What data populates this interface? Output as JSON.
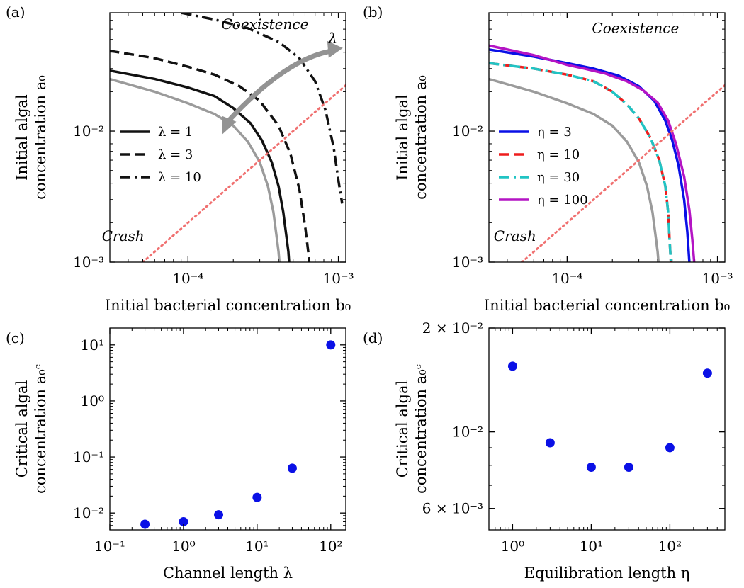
{
  "chart_data": [
    {
      "id": "a",
      "panel_label": "(a)",
      "type": "line",
      "xscale": "log",
      "yscale": "log",
      "xlim": [
        3.02e-05,
        0.00112
      ],
      "ylim": [
        0.001,
        0.08
      ],
      "xlabel": "Initial bacterial concentration b₀",
      "ylabel_line1": "Initial algal",
      "ylabel_line2": "concentration a₀",
      "xticks": [
        {
          "value": 0.0001,
          "label": "10⁻⁴"
        },
        {
          "value": 0.001,
          "label": "10⁻³"
        }
      ],
      "yticks": [
        {
          "value": 0.001,
          "label": "10⁻³"
        },
        {
          "value": 0.01,
          "label": "10⁻²"
        }
      ],
      "annotations": [
        {
          "text": "Coexistence",
          "x": 0.000325,
          "y": 0.06
        },
        {
          "text": "λ",
          "x": 0.00092,
          "y": 0.047
        },
        {
          "text": "Crash",
          "x": 3.7e-05,
          "y": 0.00145
        }
      ],
      "arrow": {
        "x": [
          0.00018,
          0.00035,
          0.0006,
          0.00092
        ],
        "y": [
          0.0115,
          0.0265,
          0.038,
          0.041
        ],
        "color": "#939393"
      },
      "legend": {
        "placement": "center-left"
      },
      "series": [
        {
          "name": "λ = 1",
          "color": "#111111",
          "dash": "solid",
          "x": [
            3e-05,
            6e-05,
            0.0001,
            0.00015,
            0.0002,
            0.00026,
            0.00031,
            0.00036,
            0.0004,
            0.00043,
            0.00045,
            0.000465,
            0.00047
          ],
          "y": [
            0.029,
            0.025,
            0.0215,
            0.0185,
            0.015,
            0.0115,
            0.0085,
            0.0058,
            0.0038,
            0.0024,
            0.0016,
            0.0012,
            0.001
          ]
        },
        {
          "name": "λ = 3",
          "color": "#111111",
          "dash": "dashed",
          "x": [
            3e-05,
            6e-05,
            0.0001,
            0.00015,
            0.00022,
            0.0003,
            0.0004,
            0.00048,
            0.00055,
            0.0006,
            0.00063,
            0.00064
          ],
          "y": [
            0.041,
            0.036,
            0.031,
            0.027,
            0.022,
            0.017,
            0.011,
            0.0067,
            0.0036,
            0.0019,
            0.0012,
            0.001
          ]
        },
        {
          "name": "λ = 10",
          "color": "#111111",
          "dash": "dashdot",
          "x": [
            9e-05,
            0.00015,
            0.00025,
            0.0004,
            0.00055,
            0.0007,
            0.00082,
            0.00093,
            0.001,
            0.00106
          ],
          "y": [
            0.08,
            0.071,
            0.061,
            0.048,
            0.036,
            0.024,
            0.0145,
            0.0075,
            0.0042,
            0.0028
          ]
        },
        {
          "name": "",
          "color": "#9b9b9b",
          "dash": "solid",
          "x": [
            3e-05,
            6e-05,
            0.0001,
            0.00015,
            0.0002,
            0.00025,
            0.0003,
            0.00034,
            0.00037,
            0.00039,
            0.0004,
            0.000405
          ],
          "y": [
            0.025,
            0.02,
            0.0163,
            0.0135,
            0.011,
            0.0083,
            0.0058,
            0.0038,
            0.0024,
            0.0015,
            0.0012,
            0.001
          ]
        },
        {
          "name": "",
          "color": "#f07070",
          "dash": "dotted",
          "x": [
            5e-05,
            0.00112
          ],
          "y": [
            0.001,
            0.0224
          ]
        }
      ]
    },
    {
      "id": "b",
      "panel_label": "(b)",
      "type": "line",
      "xscale": "log",
      "yscale": "log",
      "xlim": [
        3.02e-05,
        0.00112
      ],
      "ylim": [
        0.001,
        0.08
      ],
      "xlabel": "Initial bacterial concentration b₀",
      "ylabel_line1": "Initial algal",
      "ylabel_line2": "concentration a₀",
      "xticks": [
        {
          "value": 0.0001,
          "label": "10⁻⁴"
        },
        {
          "value": 0.001,
          "label": "10⁻³"
        }
      ],
      "yticks": [
        {
          "value": 0.001,
          "label": "10⁻³"
        },
        {
          "value": 0.01,
          "label": "10⁻²"
        }
      ],
      "annotations": [
        {
          "text": "Coexistence",
          "x": 0.000285,
          "y": 0.056
        },
        {
          "text": "Crash",
          "x": 4.5e-05,
          "y": 0.00145
        }
      ],
      "legend": {
        "placement": "center-left"
      },
      "series": [
        {
          "name": "η = 3",
          "color": "#0a10e6",
          "dash": "solid",
          "x": [
            3e-05,
            6e-05,
            0.0001,
            0.00015,
            0.00022,
            0.0003,
            0.00038,
            0.00045,
            0.0005,
            0.00055,
            0.0006,
            0.00063,
            0.00065
          ],
          "y": [
            0.042,
            0.037,
            0.033,
            0.03,
            0.0265,
            0.022,
            0.017,
            0.012,
            0.0085,
            0.0055,
            0.003,
            0.0017,
            0.001
          ]
        },
        {
          "name": "η = 10",
          "color": "#ee1d1d",
          "dash": "dashed",
          "x": [
            3e-05,
            6e-05,
            0.0001,
            0.00015,
            0.0002,
            0.00025,
            0.0003,
            0.00036,
            0.00041,
            0.00045,
            0.00047,
            0.00048,
            0.00049
          ],
          "y": [
            0.033,
            0.03,
            0.027,
            0.024,
            0.02,
            0.016,
            0.0125,
            0.0088,
            0.006,
            0.0038,
            0.0024,
            0.0015,
            0.001
          ]
        },
        {
          "name": "η = 30",
          "color": "#20c4c4",
          "dash": "dashdot",
          "x": [
            3e-05,
            6e-05,
            0.0001,
            0.00015,
            0.0002,
            0.00025,
            0.0003,
            0.00036,
            0.00041,
            0.00045,
            0.00047,
            0.00048,
            0.00049
          ],
          "y": [
            0.033,
            0.03,
            0.027,
            0.024,
            0.02,
            0.016,
            0.0125,
            0.0088,
            0.006,
            0.0038,
            0.0024,
            0.0015,
            0.001
          ]
        },
        {
          "name": "η = 100",
          "color": "#b414c4",
          "dash": "solid",
          "x": [
            3e-05,
            6e-05,
            0.0001,
            0.00013,
            0.00018,
            0.00025,
            0.00032,
            0.0004,
            0.00047,
            0.00053,
            0.0006,
            0.00065,
            0.00068,
            0.0007
          ],
          "y": [
            0.045,
            0.038,
            0.032,
            0.03,
            0.0275,
            0.024,
            0.0205,
            0.0165,
            0.012,
            0.008,
            0.0045,
            0.0025,
            0.0015,
            0.001
          ]
        },
        {
          "name": "",
          "color": "#9b9b9b",
          "dash": "solid",
          "x": [
            3e-05,
            6e-05,
            0.0001,
            0.00015,
            0.0002,
            0.00025,
            0.0003,
            0.00034,
            0.00037,
            0.00039,
            0.0004,
            0.000405
          ],
          "y": [
            0.025,
            0.02,
            0.0163,
            0.0135,
            0.011,
            0.0083,
            0.0058,
            0.0038,
            0.0024,
            0.0015,
            0.0012,
            0.001
          ]
        },
        {
          "name": "",
          "color": "#f07070",
          "dash": "dotted",
          "x": [
            5e-05,
            0.00112
          ],
          "y": [
            0.001,
            0.0224
          ]
        }
      ]
    },
    {
      "id": "c",
      "panel_label": "(c)",
      "type": "scatter",
      "xscale": "log",
      "yscale": "log",
      "xlim": [
        0.1,
        160
      ],
      "ylim": [
        0.005,
        20
      ],
      "xlabel": "Channel length λ",
      "ylabel_line1": "Critical algal",
      "ylabel_line2": "concentration a₀ᶜ",
      "xticks": [
        {
          "value": 0.1,
          "label": "10⁻¹"
        },
        {
          "value": 1,
          "label": "10⁰"
        },
        {
          "value": 10,
          "label": "10¹"
        },
        {
          "value": 100,
          "label": "10²"
        }
      ],
      "yticks": [
        {
          "value": 0.01,
          "label": "10⁻²"
        },
        {
          "value": 0.1,
          "label": "10⁻¹"
        },
        {
          "value": 1,
          "label": "10⁰"
        },
        {
          "value": 10,
          "label": "10¹"
        }
      ],
      "series": [
        {
          "name": "",
          "color": "#0a10e6",
          "x": [
            0.3,
            1,
            3,
            10,
            30,
            100
          ],
          "y": [
            0.0063,
            0.007,
            0.0093,
            0.019,
            0.063,
            10
          ]
        }
      ]
    },
    {
      "id": "d",
      "panel_label": "(d)",
      "type": "scatter",
      "xscale": "log",
      "yscale": "log",
      "xlim": [
        0.5,
        500
      ],
      "ylim": [
        0.0052,
        0.02
      ],
      "xlabel": "Equilibration length η",
      "ylabel_line1": "Critical algal",
      "ylabel_line2": "concentration a₀ᶜ",
      "xticks": [
        {
          "value": 1,
          "label": "10⁰"
        },
        {
          "value": 10,
          "label": "10¹"
        },
        {
          "value": 100,
          "label": "10²"
        }
      ],
      "yticks": [
        {
          "value": 0.006,
          "label": "6 × 10⁻³"
        },
        {
          "value": 0.01,
          "label": "10⁻²"
        },
        {
          "value": 0.02,
          "label": "2 × 10⁻²"
        }
      ],
      "series": [
        {
          "name": "",
          "color": "#0a10e6",
          "x": [
            1,
            3,
            10,
            30,
            100,
            300
          ],
          "y": [
            0.0155,
            0.0093,
            0.0079,
            0.0079,
            0.009,
            0.0148
          ]
        }
      ]
    }
  ]
}
